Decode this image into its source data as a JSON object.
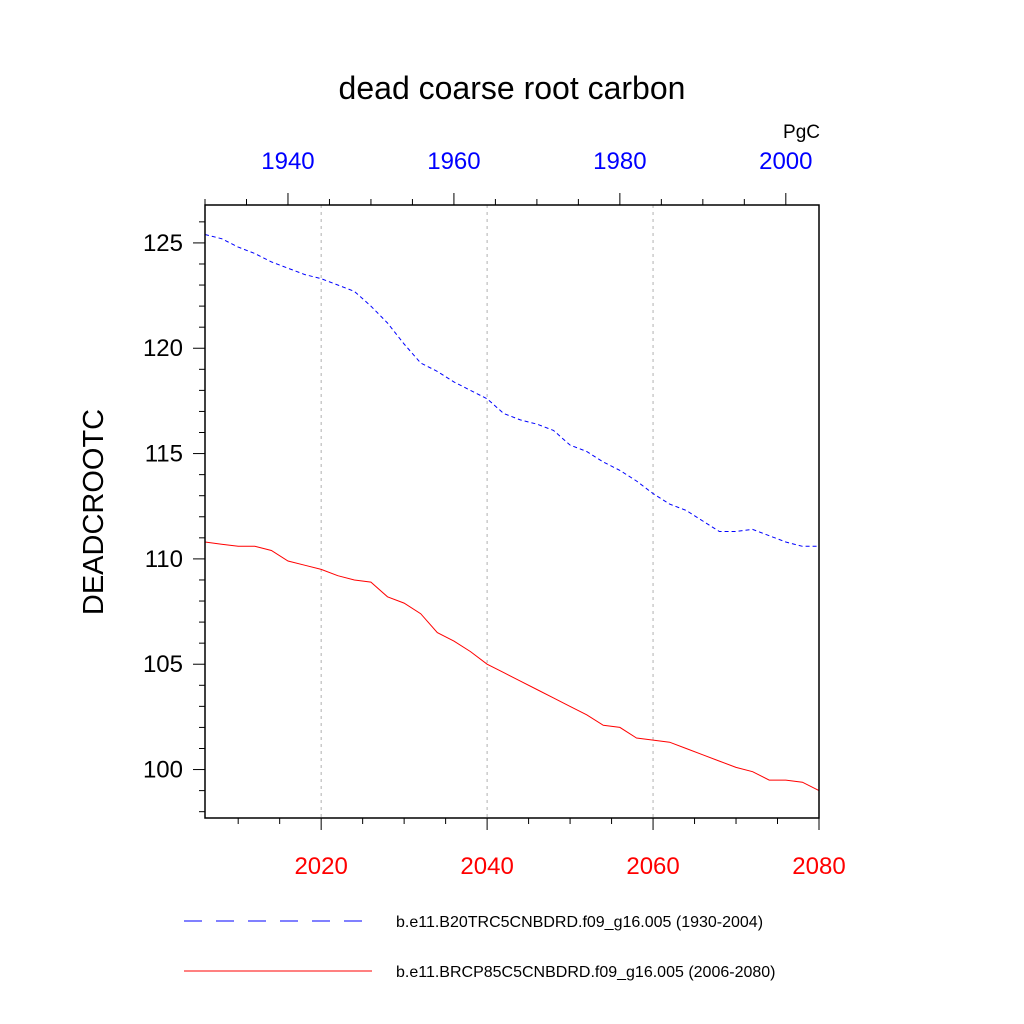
{
  "chart_data": {
    "type": "line",
    "title": "dead coarse root carbon",
    "units": "PgC",
    "ylabel": "DEADCROOTC",
    "ylim": [
      97.7,
      126.8
    ],
    "yticks": [
      100,
      105,
      110,
      115,
      120,
      125
    ],
    "yminor_step": 1,
    "grid": "vertical dotted at bottom-axis major ticks",
    "colors": {
      "top_axis": "#0000ff",
      "bottom_axis": "#ff0000",
      "series_a": "#0000ff",
      "series_b": "#ff0000"
    },
    "x_bottom": {
      "range": [
        2006,
        2080
      ],
      "ticks": [
        2020,
        2040,
        2060,
        2080
      ],
      "minor_step": 5
    },
    "x_top": {
      "range": [
        1930,
        2004
      ],
      "ticks": [
        1940,
        1960,
        1980,
        2000
      ],
      "minor_step": 5
    },
    "series": [
      {
        "name": "b.e11.B20TRC5CNBDRD.f09_g16.005 (1930-2004)",
        "axis": "top",
        "style": "dashed",
        "x": [
          1930,
          1932,
          1934,
          1936,
          1938,
          1940,
          1942,
          1944,
          1946,
          1948,
          1950,
          1952,
          1954,
          1956,
          1958,
          1960,
          1962,
          1964,
          1966,
          1968,
          1970,
          1972,
          1974,
          1976,
          1978,
          1980,
          1982,
          1984,
          1986,
          1988,
          1990,
          1992,
          1994,
          1996,
          1998,
          2000,
          2002,
          2004
        ],
        "y": [
          125.4,
          125.2,
          124.8,
          124.5,
          124.1,
          123.8,
          123.5,
          123.3,
          123.0,
          122.7,
          122.0,
          121.2,
          120.2,
          119.3,
          118.9,
          118.4,
          118.0,
          117.6,
          116.9,
          116.6,
          116.4,
          116.1,
          115.4,
          115.1,
          114.6,
          114.2,
          113.7,
          113.1,
          112.6,
          112.3,
          111.8,
          111.3,
          111.3,
          111.4,
          111.1,
          110.8,
          110.6,
          110.6
        ]
      },
      {
        "name": "b.e11.BRCP85C5CNBDRD.f09_g16.005 (2006-2080)",
        "axis": "bottom",
        "style": "solid",
        "x": [
          2006,
          2008,
          2010,
          2012,
          2014,
          2016,
          2018,
          2020,
          2022,
          2024,
          2026,
          2028,
          2030,
          2032,
          2034,
          2036,
          2038,
          2040,
          2042,
          2044,
          2046,
          2048,
          2050,
          2052,
          2054,
          2056,
          2058,
          2060,
          2062,
          2064,
          2066,
          2068,
          2070,
          2072,
          2074,
          2076,
          2078,
          2080
        ],
        "y": [
          110.8,
          110.7,
          110.6,
          110.6,
          110.4,
          109.9,
          109.7,
          109.5,
          109.2,
          109.0,
          108.9,
          108.2,
          107.9,
          107.4,
          106.5,
          106.1,
          105.6,
          105.0,
          104.6,
          104.2,
          103.8,
          103.4,
          103.0,
          102.6,
          102.1,
          102.0,
          101.5,
          101.4,
          101.3,
          101.0,
          100.7,
          100.4,
          100.1,
          99.9,
          99.5,
          99.5,
          99.4,
          99.0
        ]
      }
    ]
  }
}
